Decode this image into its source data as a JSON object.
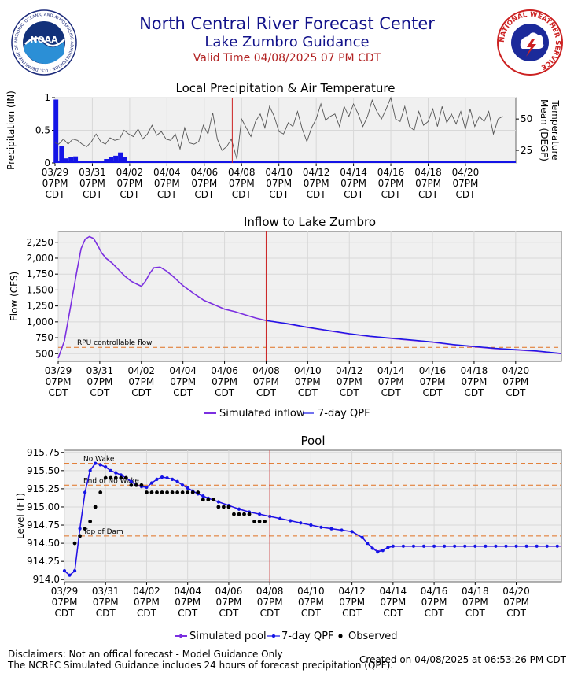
{
  "header": {
    "title": "North Central River Forecast Center",
    "subtitle": "Lake Zumbro Guidance",
    "valid_time": "Valid Time 04/08/2025 07 PM CDT"
  },
  "logos": {
    "left": "NOAA",
    "left_ring_text": "NATIONAL OCEANIC AND ATMOSPHERIC ADMINISTRATION · U.S. DEPARTMENT OF COMMERCE ·",
    "right_ring_text": "NATIONAL WEATHER SERVICE"
  },
  "footer": {
    "disclaimer1": "Disclaimers: Not an offical forecast - Model Guidance Only",
    "disclaimer2": "The NCRFC Simulated Guidance includes 24 hours of forecast precipitation (QPF).",
    "created": "Created on 04/08/2025 at 06:53:26 PM CDT"
  },
  "colors": {
    "header_blue": "#12128a",
    "valid_red": "#b22222",
    "sim_purple": "#7b2fe0",
    "qpf_blue": "#1414e6",
    "now_line": "#cc2222",
    "threshold_orange": "#e07020",
    "plot_bg": "#f0f0f0"
  },
  "chart_data": [
    {
      "type": "bar",
      "title": "Local Precipitation & Air Temperature",
      "ylabel": "Precipitation (IN)",
      "y2label": "Temperature Mean (DEGF)",
      "ylim": [
        0,
        1
      ],
      "y2lim": [
        15,
        67
      ],
      "yticks": [
        0,
        0.5,
        1
      ],
      "yticklabels": [
        "0",
        "0.5",
        "1"
      ],
      "y2ticks": [
        25,
        50
      ],
      "y2ticklabels": [
        "25",
        "50"
      ],
      "xlim": [
        0,
        24.7
      ],
      "xticks": [
        0,
        2,
        4,
        6,
        8,
        10,
        12,
        14,
        16,
        18,
        20,
        22
      ],
      "xticklabels": [
        [
          "03/29",
          "07PM",
          "CDT"
        ],
        [
          "03/31",
          "07PM",
          "CDT"
        ],
        [
          "04/02",
          "07PM",
          "CDT"
        ],
        [
          "04/04",
          "07PM",
          "CDT"
        ],
        [
          "04/06",
          "07PM",
          "CDT"
        ],
        [
          "04/08",
          "07PM",
          "CDT"
        ],
        [
          "04/10",
          "07PM",
          "CDT"
        ],
        [
          "04/12",
          "07PM",
          "CDT"
        ],
        [
          "04/14",
          "07PM",
          "CDT"
        ],
        [
          "04/16",
          "07PM",
          "CDT"
        ],
        [
          "04/18",
          "07PM",
          "CDT"
        ],
        [
          "04/20",
          "07PM",
          "CDT"
        ]
      ],
      "current_time_x": 9.5,
      "precip": {
        "x": [
          0.05,
          0.35,
          0.6,
          0.85,
          1.1,
          2.75,
          3.0,
          3.25,
          3.5,
          3.75,
          13.7
        ],
        "values": [
          0.97,
          0.26,
          0.07,
          0.09,
          0.1,
          0.06,
          0.09,
          0.11,
          0.16,
          0.09,
          0.02
        ]
      },
      "temperature": {
        "x": [
          0,
          0.2,
          0.45,
          0.7,
          0.95,
          1.2,
          1.45,
          1.7,
          1.95,
          2.2,
          2.45,
          2.7,
          2.95,
          3.2,
          3.45,
          3.7,
          3.95,
          4.2,
          4.45,
          4.7,
          4.95,
          5.2,
          5.45,
          5.7,
          5.95,
          6.2,
          6.45,
          6.7,
          6.95,
          7.2,
          7.45,
          7.7,
          7.95,
          8.2,
          8.45,
          8.7,
          8.95,
          9.2,
          9.45,
          9.75,
          10.0,
          10.25,
          10.5,
          10.75,
          11.0,
          11.25,
          11.5,
          11.75,
          12.0,
          12.25,
          12.5,
          12.75,
          13.0,
          13.25,
          13.5,
          13.75,
          14.0,
          14.25,
          14.5,
          14.75,
          15.0,
          15.25,
          15.5,
          15.75,
          16.0,
          16.25,
          16.5,
          16.75,
          17.0,
          17.25,
          17.5,
          17.75,
          18.0,
          18.25,
          18.5,
          18.75,
          19.0,
          19.25,
          19.5,
          19.75,
          20.0,
          20.25,
          20.5,
          20.75,
          21.0,
          21.25,
          21.5,
          21.75,
          22.0,
          22.25,
          22.5,
          22.75,
          23.0,
          23.25,
          23.5,
          23.75,
          24.0
        ],
        "values": [
          31,
          30,
          34,
          30,
          34,
          33,
          30,
          28,
          32,
          38,
          32,
          30,
          35,
          33,
          34,
          41,
          38,
          36,
          42,
          34,
          38,
          45,
          37,
          40,
          34,
          33,
          38,
          26,
          43,
          31,
          30,
          32,
          45,
          38,
          55,
          34,
          25,
          28,
          34,
          18,
          50,
          43,
          36,
          48,
          54,
          43,
          60,
          52,
          40,
          38,
          47,
          44,
          56,
          42,
          32,
          43,
          50,
          62,
          49,
          52,
          54,
          44,
          60,
          52,
          62,
          54,
          44,
          52,
          65,
          56,
          50,
          58,
          67,
          50,
          48,
          60,
          44,
          41,
          56,
          45,
          48,
          58,
          44,
          60,
          47,
          54,
          46,
          56,
          42,
          58,
          44,
          52,
          48,
          56,
          38,
          50,
          52
        ]
      }
    },
    {
      "type": "line",
      "title": "Inflow to Lake Zumbro",
      "ylabel": "Flow (CFS)",
      "ylim": [
        380,
        2420
      ],
      "yticks": [
        500,
        750,
        1000,
        1250,
        1500,
        1750,
        2000,
        2250
      ],
      "yticklabels": [
        "500",
        "750",
        "1,000",
        "1,250",
        "1,500",
        "1,750",
        "2,000",
        "2,250"
      ],
      "xlim": [
        0,
        24.2
      ],
      "xticks": [
        0,
        2,
        4,
        6,
        8,
        10,
        12,
        14,
        16,
        18,
        20,
        22
      ],
      "xticklabels": [
        [
          "03/29",
          "07PM",
          "CDT"
        ],
        [
          "03/31",
          "07PM",
          "CDT"
        ],
        [
          "04/02",
          "07PM",
          "CDT"
        ],
        [
          "04/04",
          "07PM",
          "CDT"
        ],
        [
          "04/06",
          "07PM",
          "CDT"
        ],
        [
          "04/08",
          "07PM",
          "CDT"
        ],
        [
          "04/10",
          "07PM",
          "CDT"
        ],
        [
          "04/12",
          "07PM",
          "CDT"
        ],
        [
          "04/14",
          "07PM",
          "CDT"
        ],
        [
          "04/16",
          "07PM",
          "CDT"
        ],
        [
          "04/18",
          "07PM",
          "CDT"
        ],
        [
          "04/20",
          "07PM",
          "CDT"
        ]
      ],
      "current_time_x": 10.0,
      "thresholds": [
        {
          "label": "RPU controllable flow",
          "value": 600
        }
      ],
      "legend": [
        "Simulated inflow",
        "7-day QPF"
      ],
      "series": [
        {
          "name": "Simulated inflow",
          "x": [
            0,
            0.3,
            0.6,
            0.9,
            1.1,
            1.3,
            1.5,
            1.7,
            1.9,
            2.1,
            2.3,
            2.6,
            2.9,
            3.2,
            3.5,
            3.8,
            4.0,
            4.2,
            4.4,
            4.6,
            4.9,
            5.2,
            5.5,
            6.0,
            6.5,
            7.0,
            7.5,
            8.0,
            8.5,
            9.0,
            9.5,
            10.0,
            11.0,
            12.0,
            13.0,
            14.0,
            15.0,
            16.0,
            17.0,
            18.0,
            19.0,
            20.0,
            21.0,
            22.0,
            23.0,
            24.2
          ],
          "values": [
            430,
            700,
            1250,
            1800,
            2150,
            2300,
            2340,
            2310,
            2200,
            2080,
            2000,
            1920,
            1820,
            1720,
            1640,
            1590,
            1560,
            1640,
            1760,
            1850,
            1860,
            1800,
            1720,
            1570,
            1450,
            1340,
            1270,
            1200,
            1160,
            1110,
            1060,
            1020,
            970,
            910,
            860,
            810,
            770,
            740,
            710,
            680,
            640,
            610,
            580,
            560,
            540,
            500
          ]
        },
        {
          "name": "7-day QPF",
          "x": [
            10.0,
            11.0,
            12.0,
            13.0,
            14.0,
            15.0,
            16.0,
            17.0,
            18.0,
            19.0,
            20.0,
            21.0,
            22.0,
            23.0,
            24.2
          ],
          "values": [
            1020,
            975,
            915,
            865,
            815,
            775,
            745,
            715,
            685,
            645,
            615,
            585,
            565,
            545,
            505
          ]
        }
      ]
    },
    {
      "type": "line",
      "title": "Pool",
      "ylabel": "Level (FT)",
      "ylim": [
        913.97,
        915.78
      ],
      "yticks": [
        914.0,
        914.25,
        914.5,
        914.75,
        915.0,
        915.25,
        915.5,
        915.75
      ],
      "yticklabels": [
        "914.0",
        "914.25",
        "914.50",
        "914.75",
        "915.00",
        "915.25",
        "915.50",
        "915.75"
      ],
      "xlim": [
        0,
        24.2
      ],
      "xticks": [
        0,
        2,
        4,
        6,
        8,
        10,
        12,
        14,
        16,
        18,
        20,
        22
      ],
      "xticklabels": [
        [
          "03/29",
          "07PM",
          "CDT"
        ],
        [
          "03/31",
          "07PM",
          "CDT"
        ],
        [
          "04/02",
          "07PM",
          "CDT"
        ],
        [
          "04/04",
          "07PM",
          "CDT"
        ],
        [
          "04/06",
          "07PM",
          "CDT"
        ],
        [
          "04/08",
          "07PM",
          "CDT"
        ],
        [
          "04/10",
          "07PM",
          "CDT"
        ],
        [
          "04/12",
          "07PM",
          "CDT"
        ],
        [
          "04/14",
          "07PM",
          "CDT"
        ],
        [
          "04/16",
          "07PM",
          "CDT"
        ],
        [
          "04/18",
          "07PM",
          "CDT"
        ],
        [
          "04/20",
          "07PM",
          "CDT"
        ]
      ],
      "current_time_x": 10.0,
      "thresholds": [
        {
          "label": "No Wake",
          "value": 915.6
        },
        {
          "label": "End of No Wake",
          "value": 915.3
        },
        {
          "label": "Top of Dam",
          "value": 914.6
        }
      ],
      "legend": [
        "Simulated pool",
        "7-day QPF",
        "Observed"
      ],
      "series": [
        {
          "name": "Simulated pool",
          "x": [
            0,
            0.25,
            0.5,
            0.75,
            1.0,
            1.25,
            1.5,
            1.75,
            2.0,
            2.25,
            2.5,
            2.75,
            3.0,
            3.25,
            3.5,
            3.75,
            4.0,
            4.25,
            4.5,
            4.75,
            5.0,
            5.25,
            5.5,
            5.75,
            6.0,
            6.25,
            6.5,
            6.75,
            7.0,
            7.5,
            8.0,
            8.5,
            9.0,
            9.5,
            10.0,
            10.5,
            11.0,
            11.5,
            12.0,
            12.5,
            13.0,
            13.5,
            14.0,
            14.5,
            14.75,
            15.0,
            15.25,
            15.5,
            15.75,
            16.0,
            16.5,
            17.0,
            17.5,
            18.0,
            18.5,
            19.0,
            19.5,
            20.0,
            20.5,
            21.0,
            21.5,
            22.0,
            22.5,
            23.0,
            23.5,
            24.0,
            24.2
          ],
          "values": [
            914.12,
            914.06,
            914.12,
            914.7,
            915.2,
            915.5,
            915.6,
            915.58,
            915.55,
            915.5,
            915.47,
            915.44,
            915.4,
            915.35,
            915.3,
            915.28,
            915.27,
            915.33,
            915.38,
            915.41,
            915.4,
            915.38,
            915.35,
            915.3,
            915.26,
            915.22,
            915.18,
            915.15,
            915.12,
            915.07,
            915.02,
            914.97,
            914.93,
            914.9,
            914.87,
            914.84,
            914.81,
            914.78,
            914.75,
            914.72,
            914.7,
            914.68,
            914.66,
            914.58,
            914.5,
            914.44,
            914.39,
            914.41,
            914.44,
            914.46,
            914.46,
            914.46,
            914.46,
            914.46,
            914.46,
            914.46,
            914.46,
            914.46,
            914.46,
            914.46,
            914.46,
            914.46,
            914.46,
            914.46,
            914.46,
            914.46,
            914.46
          ]
        },
        {
          "name": "7-day QPF",
          "x": [
            0,
            0.25,
            0.5,
            0.75,
            1.0,
            1.25,
            1.5,
            1.75,
            2.0,
            2.25,
            2.5,
            2.75,
            3.0,
            3.25,
            3.5,
            3.75,
            4.0,
            4.25,
            4.5,
            4.75,
            5.0,
            5.25,
            5.5,
            5.75,
            6.0,
            6.25,
            6.5,
            6.75,
            7.0,
            7.5,
            8.0,
            8.5,
            9.0,
            9.5,
            10.0,
            10.5,
            11.0,
            11.5,
            12.0,
            12.5,
            13.0,
            13.5,
            14.0,
            14.5,
            14.75,
            15.0,
            15.25,
            15.5,
            15.75,
            16.0,
            16.5,
            17.0,
            17.5,
            18.0,
            18.5,
            19.0,
            19.5,
            20.0,
            20.5,
            21.0,
            21.5,
            22.0,
            22.5,
            23.0,
            23.5,
            24.0
          ],
          "values": [
            914.12,
            914.06,
            914.12,
            914.7,
            915.2,
            915.5,
            915.6,
            915.58,
            915.55,
            915.5,
            915.47,
            915.44,
            915.4,
            915.35,
            915.3,
            915.28,
            915.27,
            915.33,
            915.38,
            915.41,
            915.4,
            915.38,
            915.35,
            915.3,
            915.26,
            915.22,
            915.18,
            915.15,
            915.12,
            915.07,
            915.02,
            914.97,
            914.93,
            914.9,
            914.87,
            914.84,
            914.81,
            914.78,
            914.75,
            914.72,
            914.7,
            914.68,
            914.66,
            914.58,
            914.5,
            914.43,
            914.38,
            914.4,
            914.44,
            914.46,
            914.46,
            914.46,
            914.46,
            914.46,
            914.46,
            914.46,
            914.46,
            914.46,
            914.46,
            914.46,
            914.46,
            914.46,
            914.46,
            914.46,
            914.46,
            914.46
          ]
        },
        {
          "name": "Observed",
          "x": [
            0.5,
            0.75,
            1.0,
            1.25,
            1.5,
            1.75,
            2.0,
            2.25,
            2.5,
            2.75,
            3.0,
            3.25,
            3.5,
            3.75,
            4.0,
            4.25,
            4.5,
            4.75,
            5.0,
            5.25,
            5.5,
            5.75,
            6.0,
            6.25,
            6.5,
            6.75,
            7.0,
            7.25,
            7.5,
            7.75,
            8.0,
            8.25,
            8.5,
            8.75,
            9.0,
            9.25,
            9.5,
            9.75
          ],
          "values": [
            914.5,
            914.6,
            914.7,
            914.8,
            915.0,
            915.2,
            915.4,
            915.4,
            915.4,
            915.4,
            915.4,
            915.3,
            915.3,
            915.3,
            915.2,
            915.2,
            915.2,
            915.2,
            915.2,
            915.2,
            915.2,
            915.2,
            915.2,
            915.2,
            915.2,
            915.1,
            915.1,
            915.1,
            915.0,
            915.0,
            915.0,
            914.9,
            914.9,
            914.9,
            914.9,
            914.8,
            914.8,
            914.8
          ]
        }
      ]
    }
  ]
}
